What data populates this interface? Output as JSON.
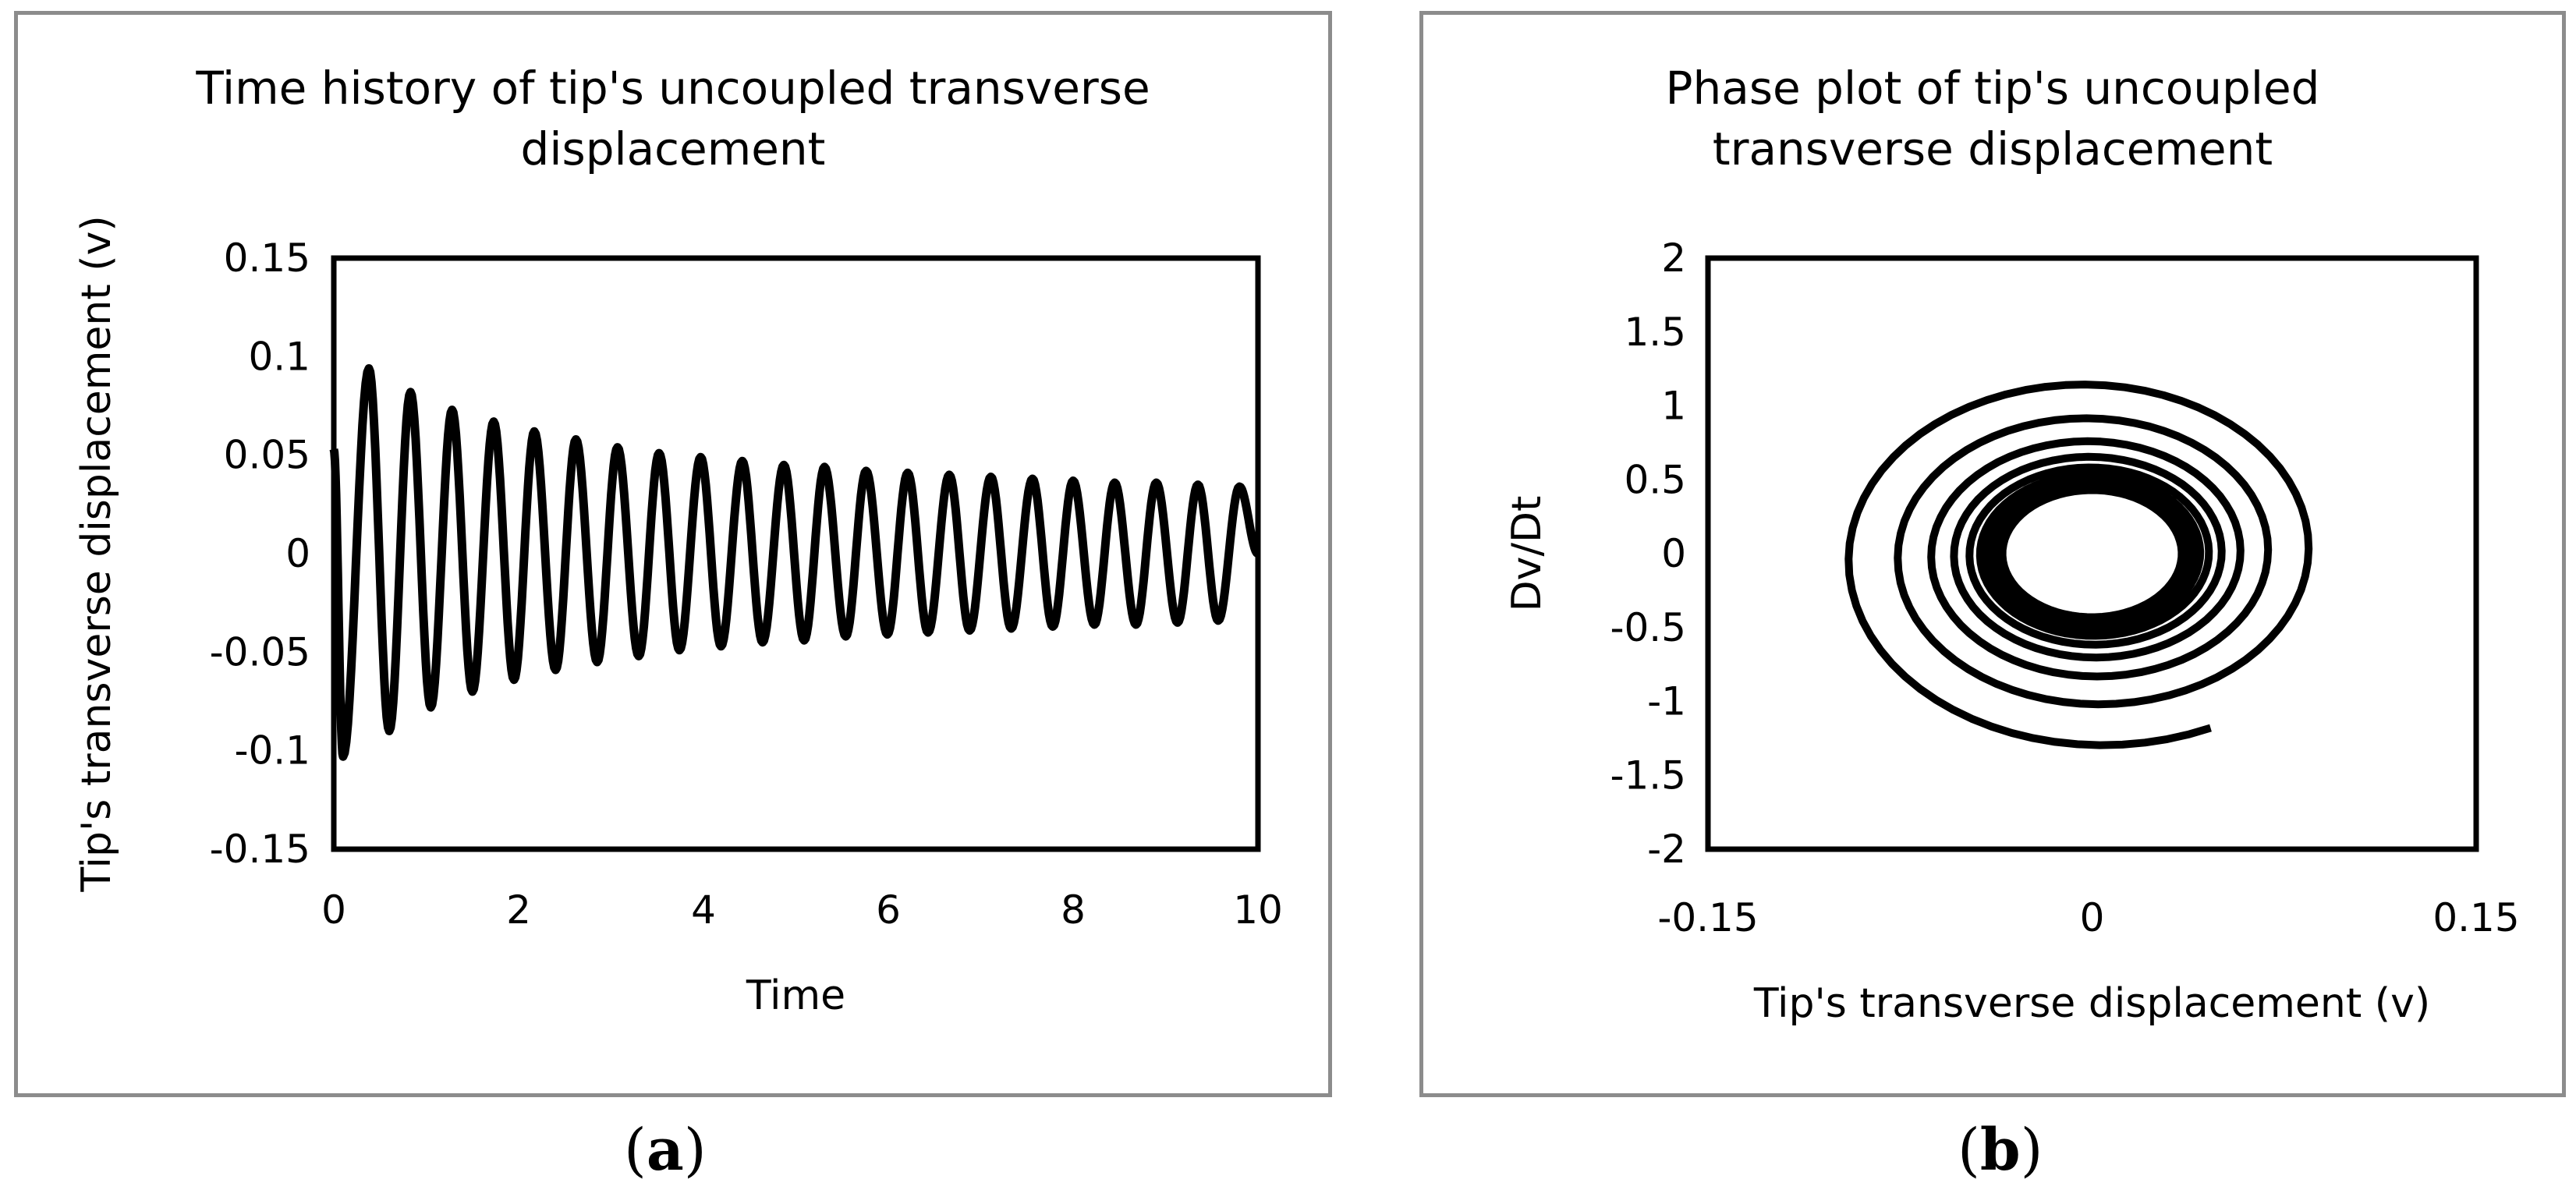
{
  "panels": [
    {
      "label_open": "(",
      "label": "a",
      "label_close": ")"
    },
    {
      "label_open": "(",
      "label": "b",
      "label_close": ")"
    }
  ],
  "chart_data": [
    {
      "type": "line",
      "title_lines": [
        "Time history of tip's uncoupled transverse",
        "displacement"
      ],
      "xlabel": "Time",
      "ylabel": "Tip's transverse displacement (v)",
      "xlim": [
        0,
        10
      ],
      "ylim": [
        -0.15,
        0.15
      ],
      "xticks": [
        "0",
        "2",
        "4",
        "6",
        "8",
        "10"
      ],
      "yticks": [
        "0.15",
        "0.1",
        "0.05",
        "0",
        "-0.05",
        "-0.1",
        "-0.15"
      ],
      "grid": false,
      "series": [
        {
          "color": "#000000",
          "x": [
            0.0,
            0.1,
            0.38,
            0.6,
            0.83,
            1.05,
            1.28,
            1.5,
            1.73,
            1.95,
            2.17,
            2.4,
            2.62,
            2.85,
            3.07,
            3.3,
            3.52,
            3.74,
            3.97,
            4.19,
            4.42,
            4.64,
            4.87,
            5.09,
            5.31,
            5.54,
            5.76,
            5.99,
            6.21,
            6.43,
            6.66,
            6.88,
            7.11,
            7.33,
            7.56,
            7.78,
            8.0,
            8.23,
            8.45,
            8.68,
            8.9,
            9.13,
            9.35,
            9.57,
            9.8,
            10.0
          ],
          "y": [
            0.053,
            -0.103,
            0.094,
            -0.09,
            0.082,
            -0.078,
            0.073,
            -0.07,
            0.067,
            -0.064,
            0.062,
            -0.059,
            0.058,
            -0.055,
            0.054,
            -0.052,
            0.051,
            -0.049,
            0.049,
            -0.047,
            0.047,
            -0.045,
            0.045,
            -0.044,
            0.044,
            -0.042,
            0.042,
            -0.041,
            0.041,
            -0.04,
            0.04,
            -0.039,
            0.039,
            -0.038,
            0.038,
            -0.037,
            0.037,
            -0.036,
            0.036,
            -0.036,
            0.036,
            -0.035,
            0.035,
            -0.034,
            0.034,
            0.0
          ]
        }
      ]
    },
    {
      "type": "scatter",
      "title_lines": [
        "Phase plot of tip's uncoupled",
        "transverse displacement"
      ],
      "xlabel": "Tip's transverse displacement (v)",
      "ylabel": "Dv/Dt",
      "xlim": [
        -0.15,
        0.15
      ],
      "ylim": [
        -2,
        2
      ],
      "xticks": [
        "-0.15",
        "0",
        "0.15"
      ],
      "yticks": [
        "2",
        "1.5",
        "1",
        "0.5",
        "0",
        "-0.5",
        "-1",
        "-1.5",
        "-2"
      ],
      "grid": false,
      "spiral": {
        "start": {
          "x": 0.053,
          "y": -1.35
        },
        "outer_amplitude_x": 0.103,
        "outer_amplitude_y": 1.32,
        "limit_amplitude_x": 0.035,
        "limit_amplitude_y": 0.43,
        "color": "#000000"
      }
    }
  ]
}
